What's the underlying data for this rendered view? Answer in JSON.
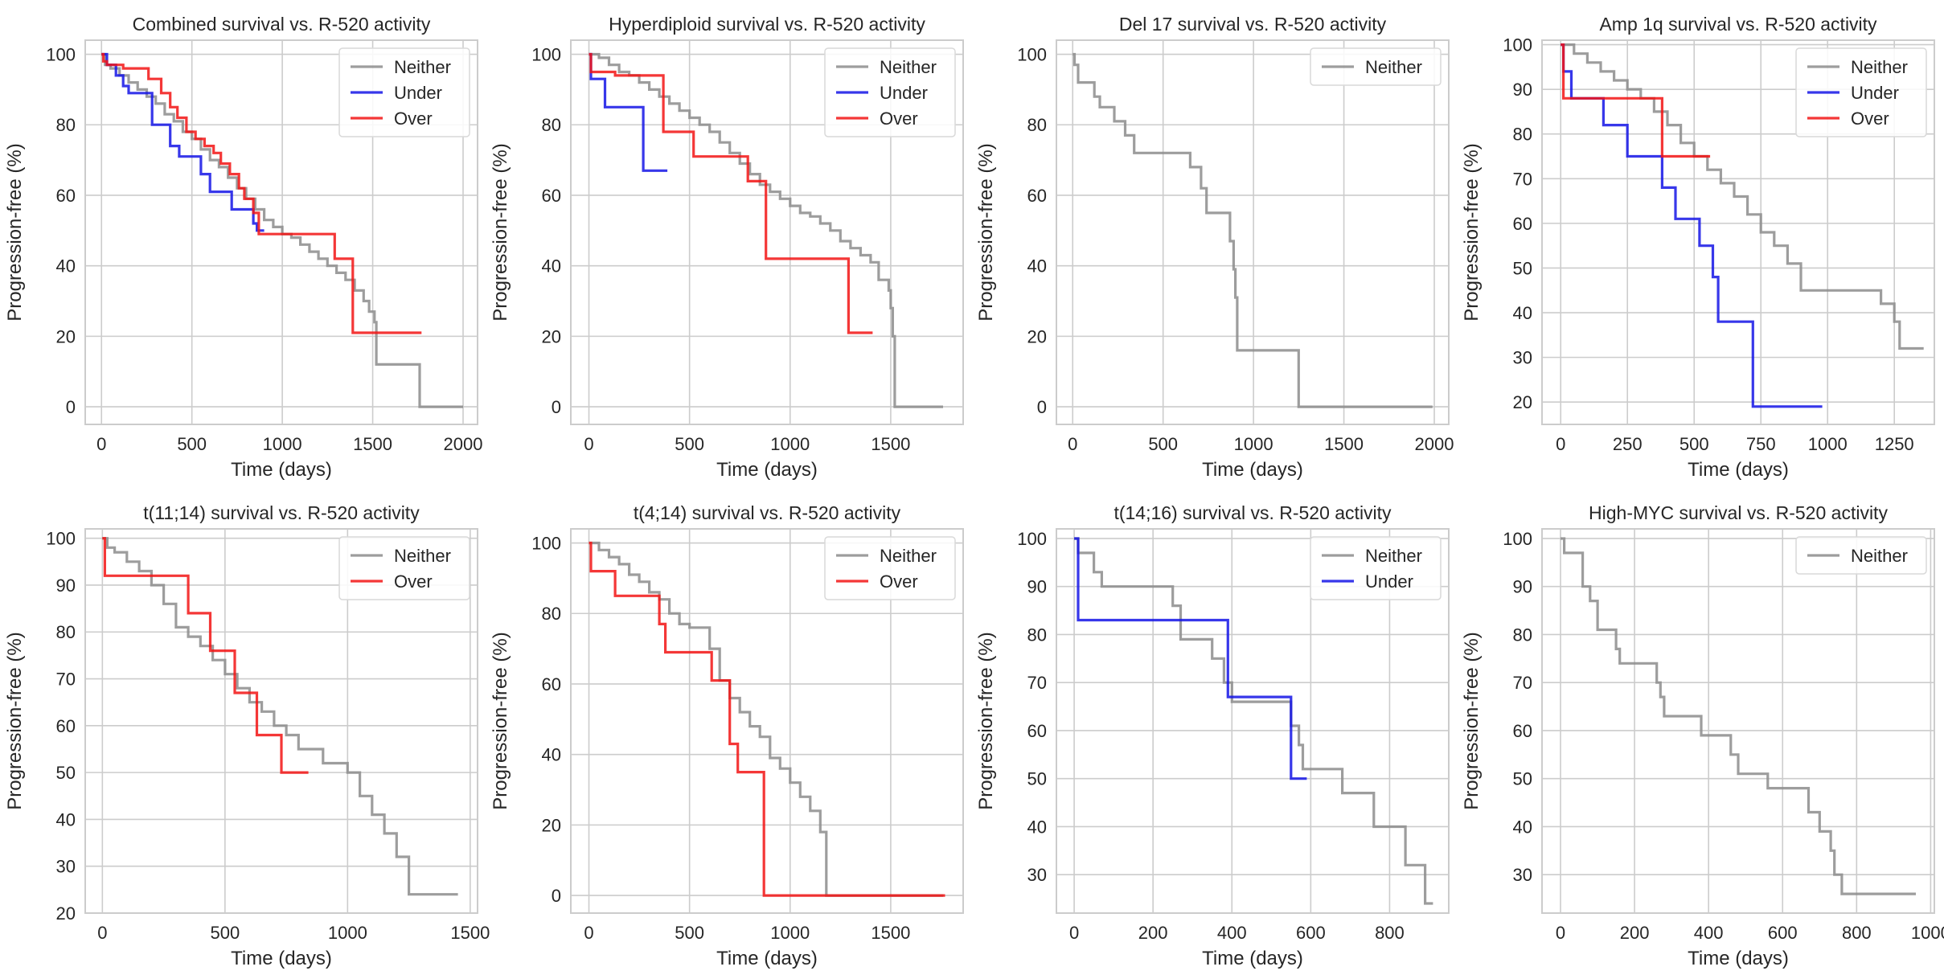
{
  "figure": {
    "style": {
      "grid_color": "#cccccc",
      "frame_color": "#cccccc",
      "series_colors": {
        "Neither": "#8c8c8c",
        "Under": "#1414e6",
        "Over": "#f21414"
      }
    },
    "chart_data": [
      {
        "type": "line",
        "step": true,
        "title": "Combined survival vs. R-520 activity",
        "xlabel": "Time (days)",
        "ylabel": "Progression-free (%)",
        "xlim": [
          -90,
          2080
        ],
        "ylim": [
          -5,
          104
        ],
        "xticks": [
          0,
          500,
          1000,
          1500,
          2000
        ],
        "yticks": [
          0,
          20,
          40,
          60,
          80,
          100
        ],
        "legend": "top-right",
        "grid": true,
        "series": [
          {
            "name": "Neither",
            "x": [
              0,
              20,
              50,
              100,
              150,
              200,
              250,
              300,
              350,
              400,
              450,
              500,
              550,
              600,
              650,
              700,
              750,
              800,
              850,
              900,
              950,
              1000,
              1050,
              1100,
              1150,
              1200,
              1250,
              1300,
              1350,
              1400,
              1450,
              1480,
              1510,
              1520,
              1750,
              1760,
              2000
            ],
            "y": [
              100,
              97,
              96,
              94,
              92,
              90,
              88,
              86,
              83,
              81,
              78,
              76,
              73,
              70,
              68,
              65,
              62,
              59,
              56,
              53,
              51,
              49,
              48,
              46,
              44,
              42,
              40,
              38,
              36,
              33,
              30,
              27,
              24,
              12,
              12,
              0,
              0
            ]
          },
          {
            "name": "Under",
            "x": [
              0,
              30,
              80,
              120,
              150,
              280,
              380,
              430,
              550,
              600,
              720,
              840,
              860,
              900
            ],
            "y": [
              100,
              97,
              94,
              91,
              89,
              80,
              74,
              71,
              66,
              61,
              56,
              52,
              50,
              50
            ]
          },
          {
            "name": "Over",
            "x": [
              0,
              10,
              30,
              70,
              120,
              190,
              260,
              330,
              380,
              420,
              470,
              520,
              570,
              620,
              660,
              710,
              760,
              790,
              840,
              870,
              1000,
              1080,
              1160,
              1290,
              1390,
              1400,
              1770
            ],
            "y": [
              100,
              98,
              97,
              97,
              96,
              96,
              93,
              89,
              85,
              82,
              78,
              76,
              74,
              72,
              69,
              66,
              62,
              59,
              55,
              49,
              49,
              49,
              49,
              42,
              21,
              21,
              21
            ]
          }
        ]
      },
      {
        "type": "line",
        "step": true,
        "title": "Hyperdiploid survival vs. R-520 activity",
        "xlabel": "Time (days)",
        "ylabel": "Progression-free (%)",
        "xlim": [
          -90,
          1860
        ],
        "ylim": [
          -5,
          104
        ],
        "xticks": [
          0,
          500,
          1000,
          1500
        ],
        "yticks": [
          0,
          20,
          40,
          60,
          80,
          100
        ],
        "legend": "top-right",
        "grid": true,
        "series": [
          {
            "name": "Neither",
            "x": [
              0,
              50,
              100,
              150,
              200,
              250,
              300,
              350,
              400,
              450,
              500,
              550,
              600,
              650,
              700,
              750,
              800,
              850,
              900,
              950,
              1000,
              1050,
              1100,
              1150,
              1200,
              1250,
              1300,
              1350,
              1400,
              1440,
              1490,
              1500,
              1510,
              1520,
              1760
            ],
            "y": [
              100,
              99,
              97,
              95,
              94,
              92,
              90,
              88,
              86,
              84,
              82,
              80,
              78,
              75,
              72,
              69,
              66,
              63,
              61,
              59,
              57,
              55,
              54,
              52,
              50,
              47,
              45,
              43,
              41,
              36,
              33,
              28,
              20,
              0,
              0
            ]
          },
          {
            "name": "Under",
            "x": [
              0,
              10,
              80,
              270,
              390
            ],
            "y": [
              100,
              93,
              85,
              67,
              67
            ]
          },
          {
            "name": "Over",
            "x": [
              0,
              10,
              130,
              370,
              520,
              790,
              880,
              1290,
              1410
            ],
            "y": [
              100,
              95,
              94,
              78,
              71,
              64,
              42,
              21,
              21
            ]
          }
        ]
      },
      {
        "type": "line",
        "step": true,
        "title": "Del 17 survival vs. R-520 activity",
        "xlabel": "Time (days)",
        "ylabel": "Progression-free (%)",
        "xlim": [
          -90,
          2080
        ],
        "ylim": [
          -5,
          104
        ],
        "xticks": [
          0,
          500,
          1000,
          1500,
          2000
        ],
        "yticks": [
          0,
          20,
          40,
          60,
          80,
          100
        ],
        "legend": "top-right",
        "grid": true,
        "series": [
          {
            "name": "Neither",
            "x": [
              0,
              10,
              30,
              120,
              150,
              230,
              290,
              340,
              650,
              710,
              740,
              870,
              890,
              900,
              910,
              1250,
              1990
            ],
            "y": [
              100,
              97,
              92,
              88,
              85,
              81,
              77,
              72,
              68,
              62,
              55,
              47,
              39,
              31,
              16,
              0,
              0
            ]
          }
        ]
      },
      {
        "type": "line",
        "step": true,
        "title": "Amp 1q survival vs. R-520 activity",
        "xlabel": "Time (days)",
        "ylabel": "Progression-free (%)",
        "xlim": [
          -70,
          1400
        ],
        "ylim": [
          15,
          101
        ],
        "xticks": [
          0,
          250,
          500,
          750,
          1000,
          1250
        ],
        "yticks": [
          20,
          30,
          40,
          50,
          60,
          70,
          80,
          90,
          100
        ],
        "legend": "top-right",
        "grid": true,
        "series": [
          {
            "name": "Neither",
            "x": [
              0,
              50,
              100,
              150,
              200,
              250,
              300,
              350,
              400,
              450,
              500,
              550,
              600,
              650,
              700,
              750,
              800,
              850,
              900,
              1100,
              1200,
              1250,
              1270,
              1360
            ],
            "y": [
              100,
              98,
              96,
              94,
              92,
              90,
              88,
              85,
              82,
              78,
              75,
              72,
              69,
              66,
              62,
              58,
              55,
              51,
              45,
              45,
              42,
              38,
              32,
              32
            ]
          },
          {
            "name": "Under",
            "x": [
              0,
              10,
              40,
              160,
              250,
              380,
              430,
              520,
              570,
              590,
              720,
              980
            ],
            "y": [
              100,
              94,
              88,
              82,
              75,
              68,
              61,
              55,
              48,
              38,
              19,
              19
            ]
          },
          {
            "name": "Over",
            "x": [
              0,
              10,
              100,
              300,
              380,
              560
            ],
            "y": [
              100,
              88,
              88,
              88,
              75,
              75
            ]
          }
        ]
      },
      {
        "type": "line",
        "step": true,
        "title": "t(11;14) survival vs. R-520 activity",
        "xlabel": "Time (days)",
        "ylabel": "Progression-free (%)",
        "xlim": [
          -70,
          1530
        ],
        "ylim": [
          20,
          102
        ],
        "xticks": [
          0,
          500,
          1000,
          1500
        ],
        "yticks": [
          20,
          30,
          40,
          50,
          60,
          70,
          80,
          90,
          100
        ],
        "legend": "top-right",
        "grid": true,
        "series": [
          {
            "name": "Neither",
            "x": [
              0,
              20,
              50,
              100,
              150,
              200,
              250,
              300,
              350,
              400,
              450,
              500,
              550,
              600,
              650,
              700,
              750,
              800,
              900,
              1000,
              1050,
              1100,
              1150,
              1200,
              1250,
              1450
            ],
            "y": [
              100,
              98,
              97,
              95,
              93,
              90,
              86,
              81,
              79,
              77,
              74,
              71,
              68,
              65,
              63,
              60,
              58,
              55,
              52,
              50,
              45,
              41,
              37,
              32,
              24,
              24
            ]
          },
          {
            "name": "Over",
            "x": [
              0,
              10,
              350,
              440,
              540,
              630,
              730,
              840
            ],
            "y": [
              100,
              92,
              84,
              76,
              67,
              58,
              50,
              50
            ]
          }
        ]
      },
      {
        "type": "line",
        "step": true,
        "title": "t(4;14) survival vs. R-520 activity",
        "xlabel": "Time (days)",
        "ylabel": "Progression-free (%)",
        "xlim": [
          -90,
          1860
        ],
        "ylim": [
          -5,
          104
        ],
        "xticks": [
          0,
          500,
          1000,
          1500
        ],
        "yticks": [
          0,
          20,
          40,
          60,
          80,
          100
        ],
        "legend": "top-right",
        "grid": true,
        "series": [
          {
            "name": "Neither",
            "x": [
              0,
              50,
              100,
              150,
              200,
              250,
              300,
              350,
              400,
              450,
              500,
              550,
              600,
              650,
              700,
              750,
              800,
              850,
              900,
              950,
              1000,
              1050,
              1100,
              1150,
              1180,
              1760
            ],
            "y": [
              100,
              98,
              96,
              94,
              91,
              89,
              86,
              84,
              80,
              77,
              76,
              76,
              70,
              61,
              56,
              52,
              48,
              45,
              39,
              36,
              32,
              28,
              24,
              18,
              0,
              0
            ]
          },
          {
            "name": "Over",
            "x": [
              0,
              10,
              130,
              350,
              380,
              610,
              700,
              740,
              870,
              1770
            ],
            "y": [
              100,
              92,
              85,
              77,
              69,
              61,
              43,
              35,
              0,
              0
            ]
          }
        ]
      },
      {
        "type": "line",
        "step": true,
        "title": "t(14;16) survival vs. R-520 activity",
        "xlabel": "Time (days)",
        "ylabel": "Progression-free (%)",
        "xlim": [
          -45,
          950
        ],
        "ylim": [
          22,
          102
        ],
        "xticks": [
          0,
          200,
          400,
          600,
          800
        ],
        "yticks": [
          30,
          40,
          50,
          60,
          70,
          80,
          90,
          100
        ],
        "legend": "top-right",
        "grid": true,
        "series": [
          {
            "name": "Neither",
            "x": [
              0,
              10,
              50,
              70,
              250,
              270,
              350,
              380,
              400,
              550,
              570,
              580,
              600,
              680,
              760,
              840,
              890,
              910
            ],
            "y": [
              100,
              97,
              93,
              90,
              86,
              79,
              75,
              70,
              66,
              61,
              57,
              52,
              52,
              47,
              40,
              32,
              24,
              24
            ]
          },
          {
            "name": "Under",
            "x": [
              0,
              10,
              390,
              550,
              590
            ],
            "y": [
              100,
              83,
              67,
              50,
              50
            ]
          }
        ]
      },
      {
        "type": "line",
        "step": true,
        "title": "High-MYC survival vs. R-520 activity",
        "xlabel": "Time (days)",
        "ylabel": "Progression-free (%)",
        "xlim": [
          -50,
          1010
        ],
        "ylim": [
          22,
          102
        ],
        "xticks": [
          0,
          200,
          400,
          600,
          800,
          1000
        ],
        "yticks": [
          30,
          40,
          50,
          60,
          70,
          80,
          90,
          100
        ],
        "legend": "top-right",
        "grid": true,
        "series": [
          {
            "name": "Neither",
            "x": [
              0,
              10,
              60,
              80,
              100,
              150,
              160,
              260,
              270,
              280,
              380,
              460,
              480,
              560,
              670,
              700,
              730,
              740,
              760,
              960
            ],
            "y": [
              100,
              97,
              90,
              87,
              81,
              77,
              74,
              70,
              67,
              63,
              59,
              55,
              51,
              48,
              43,
              39,
              35,
              30,
              26,
              26
            ]
          }
        ]
      }
    ]
  }
}
